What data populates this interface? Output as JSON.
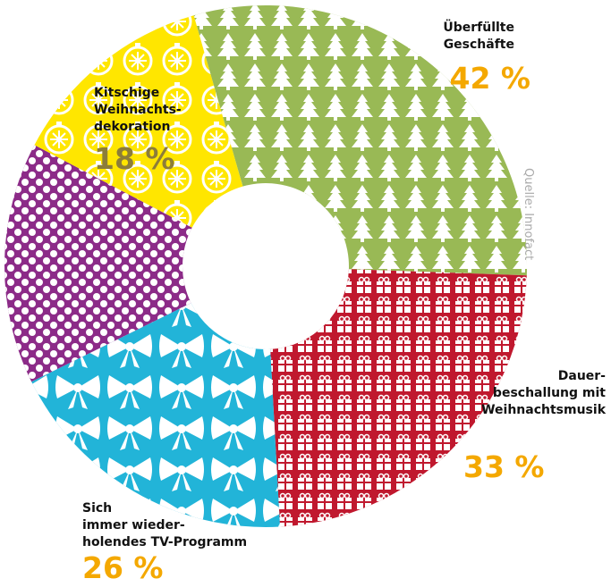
{
  "chart_data": {
    "type": "donut",
    "categories": [
      "Überfüllte\nGeschäfte",
      "Dauer-\nbeschallung mit\nWeihnachtsmusik",
      "Sich\nimmer wieder-\nholendes TV-Programm",
      null,
      "Kitschige\nWeihnachts-\ndekoration"
    ],
    "values": [
      42,
      33,
      26,
      21,
      18
    ],
    "value_labels": [
      "42 %",
      "33 %",
      "26 %",
      null,
      "18 %"
    ],
    "colors": [
      "#99b955",
      "#c0182e",
      "#22b4d8",
      "#8c2b88",
      "#ffe600"
    ],
    "source": "Quelle: Innofact"
  }
}
